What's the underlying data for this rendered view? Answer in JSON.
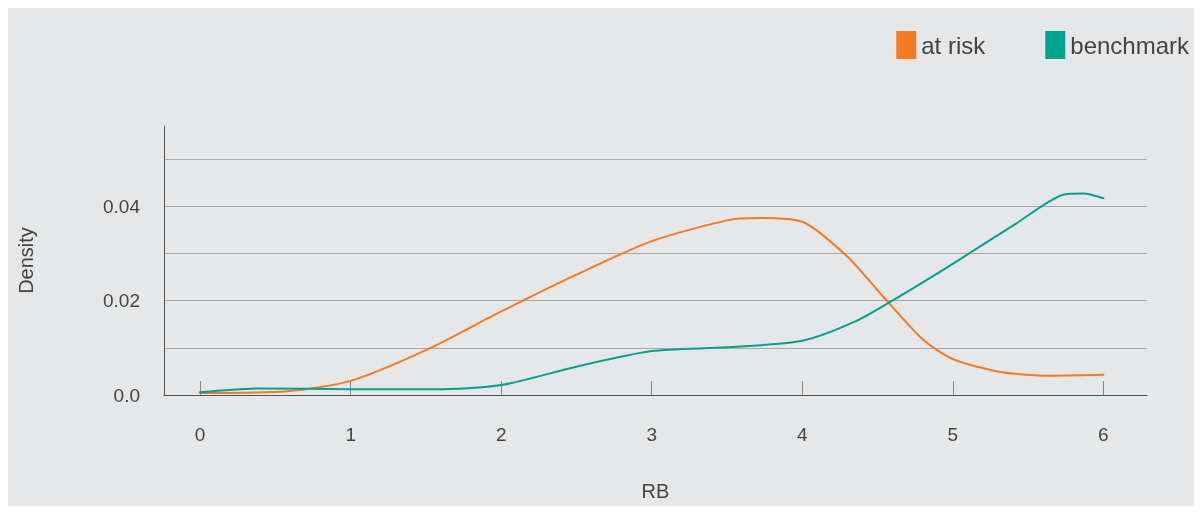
{
  "chart_data": {
    "type": "line",
    "xlabel": "RB",
    "ylabel": "Density",
    "xlim": [
      -0.24,
      6.29
    ],
    "xticks": [
      0,
      1,
      2,
      3,
      4,
      5,
      6
    ],
    "ylim": [
      0,
      0.057
    ],
    "yticks": [
      {
        "value": 0,
        "label": "0.0"
      },
      {
        "value": 0.01,
        "label": null
      },
      0.02,
      {
        "value": 0.03,
        "label": null
      },
      0.04,
      {
        "value": 0.05,
        "label": null
      }
    ],
    "grid": "y",
    "legend": "top right",
    "marker": "none",
    "line_style": "solid",
    "series": [
      {
        "name": "at risk",
        "color": "#f47b20",
        "x": [
          0,
          0.58,
          1,
          1.5,
          2,
          2.5,
          3,
          3.5,
          3.7,
          4,
          4.3,
          4.55,
          4.8,
          5,
          5.3,
          5.6,
          6
        ],
        "values": [
          0.0004,
          0.0008,
          0.003,
          0.0095,
          0.0177,
          0.0255,
          0.0326,
          0.037,
          0.0375,
          0.0367,
          0.0293,
          0.0204,
          0.0118,
          0.0076,
          0.005,
          0.0041,
          0.0043
        ]
      },
      {
        "name": "benchmark",
        "color": "#00a390",
        "x": [
          0,
          0.42,
          1,
          1.56,
          2,
          2.5,
          3,
          3.5,
          4,
          4.36,
          4.63,
          5,
          5.41,
          5.74,
          5.87,
          6
        ],
        "values": [
          0.0006,
          0.0014,
          0.0012,
          0.0012,
          0.0021,
          0.006,
          0.0093,
          0.0101,
          0.0115,
          0.0157,
          0.0206,
          0.0278,
          0.0361,
          0.0425,
          0.0427,
          0.0417
        ]
      }
    ]
  }
}
